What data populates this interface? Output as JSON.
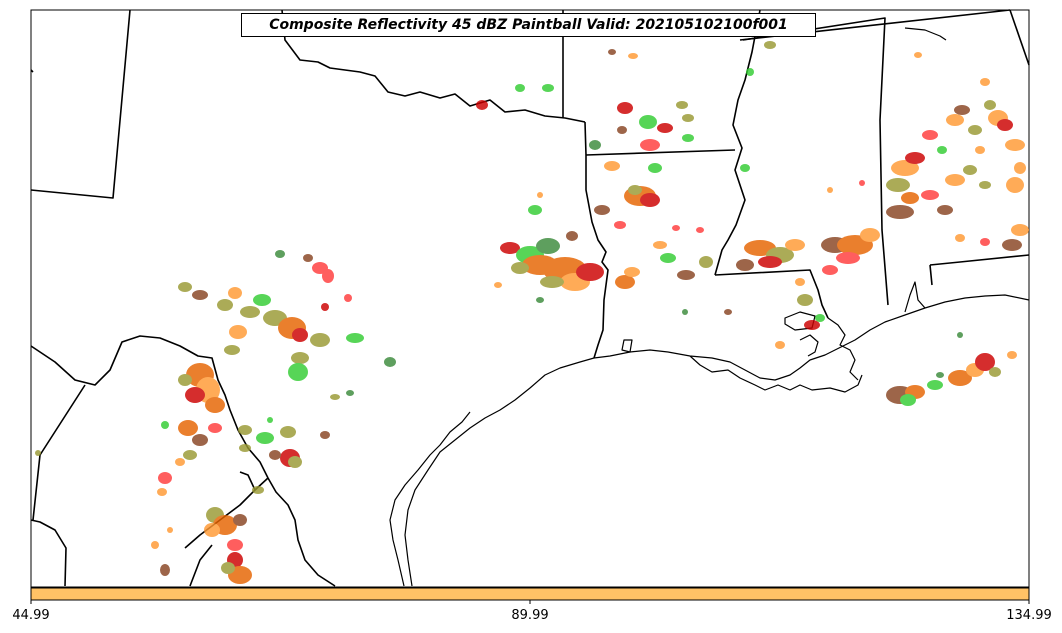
{
  "title": "Composite Reflectivity 45 dBZ Paintball Valid: 202105102100f001",
  "colorbar": {
    "fill_color": "#ffc266",
    "tick_labels": [
      "44.99",
      "89.99",
      "134.99"
    ]
  },
  "map": {
    "background_color": "#ffffff",
    "boundary_color": "#000000",
    "paintball_colors": [
      "#ff3b3b",
      "#e66400",
      "#ff9933",
      "#33cc33",
      "#999933",
      "#884422",
      "#cc0000",
      "#3b8a3b"
    ]
  }
}
